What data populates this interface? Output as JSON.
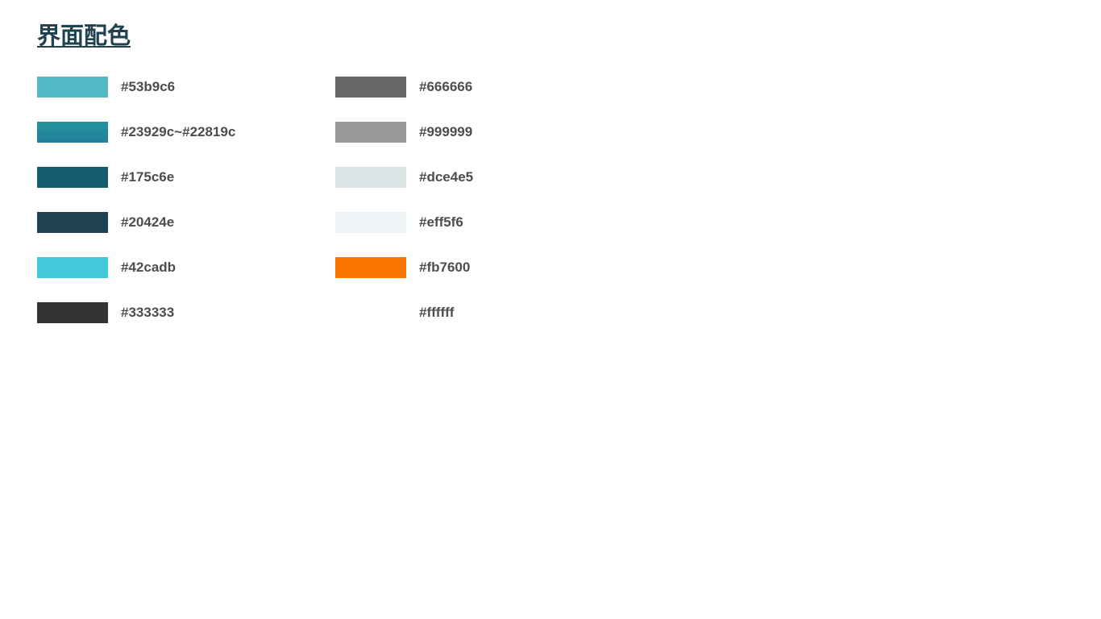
{
  "title": "界面配色",
  "palette": {
    "left": [
      {
        "label": "#53b9c6",
        "color": "#53b9c6"
      },
      {
        "label": "#23929c~#22819c",
        "color": "#23929c",
        "color_end": "#22819c"
      },
      {
        "label": "#175c6e",
        "color": "#175c6e"
      },
      {
        "label": "#20424e",
        "color": "#20424e"
      },
      {
        "label": "#42cadb",
        "color": "#42cadb"
      },
      {
        "label": "#333333",
        "color": "#333333"
      }
    ],
    "right": [
      {
        "label": "#666666",
        "color": "#666666"
      },
      {
        "label": "#999999",
        "color": "#999999"
      },
      {
        "label": "#dce4e5",
        "color": "#dce4e5"
      },
      {
        "label": "#eff5f6",
        "color": "#eff5f6"
      },
      {
        "label": "#fb7600",
        "color": "#fb7600"
      },
      {
        "label": "#ffffff",
        "color": "#ffffff"
      }
    ]
  }
}
